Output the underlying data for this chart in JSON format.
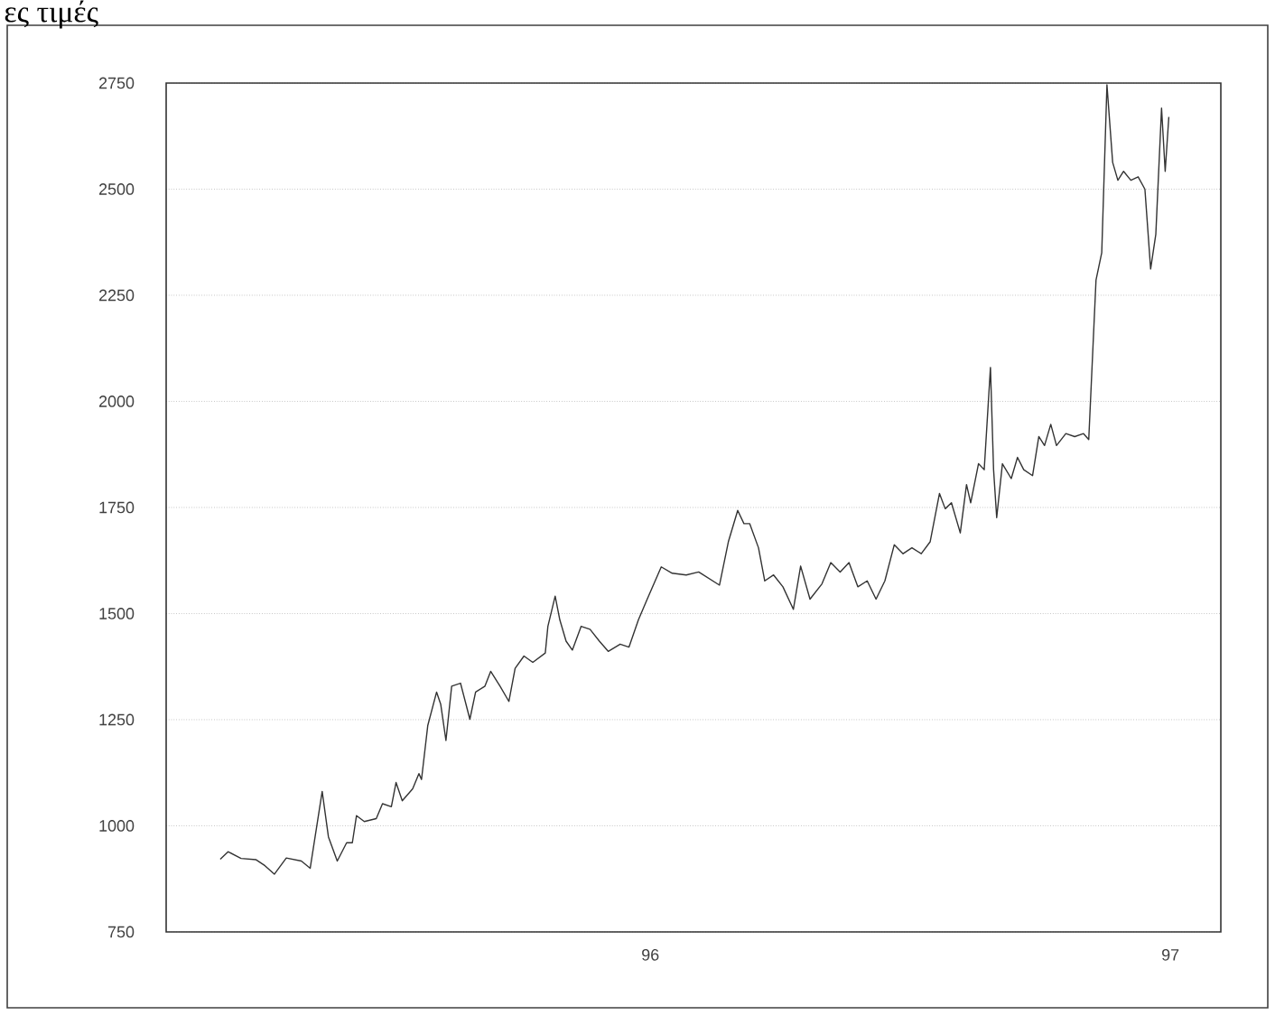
{
  "chart_data": {
    "type": "line",
    "title": "ες τιμές",
    "x": [
      1995.173,
      1995.188,
      1995.213,
      1995.242,
      1995.259,
      1995.277,
      1995.3,
      1995.329,
      1995.346,
      1995.369,
      1995.381,
      1995.398,
      1995.416,
      1995.427,
      1995.435,
      1995.45,
      1995.473,
      1995.485,
      1995.502,
      1995.511,
      1995.523,
      1995.543,
      1995.555,
      1995.56,
      1995.572,
      1995.589,
      1995.597,
      1995.607,
      1995.618,
      1995.635,
      1995.653,
      1995.664,
      1995.682,
      1995.693,
      1995.711,
      1995.728,
      1995.74,
      1995.757,
      1995.774,
      1995.798,
      1995.803,
      1995.817,
      1995.826,
      1995.838,
      1995.85,
      1995.867,
      1995.884,
      1995.902,
      1995.919,
      1995.942,
      1995.959,
      1995.977,
      1995.994,
      1996.021,
      1996.042,
      1996.069,
      1996.093,
      1996.133,
      1996.15,
      1996.168,
      1996.18,
      1996.191,
      1996.208,
      1996.22,
      1996.237,
      1996.255,
      1996.275,
      1996.289,
      1996.307,
      1996.33,
      1996.347,
      1996.365,
      1996.382,
      1996.399,
      1996.417,
      1996.434,
      1996.451,
      1996.469,
      1996.486,
      1996.503,
      1996.521,
      1996.538,
      1996.556,
      1996.567,
      1996.579,
      1996.596,
      1996.608,
      1996.616,
      1996.631,
      1996.642,
      1996.654,
      1996.66,
      1996.666,
      1996.677,
      1996.694,
      1996.706,
      1996.718,
      1996.735,
      1996.747,
      1996.758,
      1996.77,
      1996.781,
      1996.799,
      1996.816,
      1996.833,
      1996.843,
      1996.857,
      1996.868,
      1996.878,
      1996.889,
      1996.899,
      1996.91,
      1996.924,
      1996.938,
      1996.951,
      1996.962,
      1996.972,
      1996.983,
      1996.99,
      1996.997
    ],
    "values": [
      921,
      939,
      923,
      920,
      906,
      886,
      924,
      917,
      900,
      1081,
      974,
      917,
      960,
      960,
      1024,
      1010,
      1017,
      1052,
      1045,
      1102,
      1059,
      1087,
      1123,
      1109,
      1236,
      1315,
      1286,
      1201,
      1329,
      1336,
      1251,
      1315,
      1329,
      1364,
      1329,
      1293,
      1371,
      1400,
      1385,
      1407,
      1470,
      1541,
      1485,
      1435,
      1414,
      1470,
      1463,
      1435,
      1411,
      1428,
      1421,
      1485,
      1534,
      1610,
      1595,
      1591,
      1598,
      1567,
      1669,
      1743,
      1712,
      1712,
      1655,
      1577,
      1591,
      1563,
      1510,
      1612,
      1534,
      1570,
      1620,
      1598,
      1620,
      1563,
      1577,
      1534,
      1577,
      1662,
      1641,
      1655,
      1641,
      1669,
      1783,
      1747,
      1761,
      1690,
      1804,
      1761,
      1853,
      1839,
      2080,
      1839,
      1726,
      1853,
      1818,
      1868,
      1839,
      1825,
      1917,
      1896,
      1946,
      1896,
      1924,
      1917,
      1924,
      1910,
      2286,
      2350,
      2746,
      2563,
      2521,
      2542,
      2521,
      2529,
      2500,
      2312,
      2394,
      2691,
      2542,
      2670
    ],
    "color": "#333333",
    "xlim": [
      1995.069,
      1997.097
    ],
    "xticks": [
      {
        "value": 1996,
        "label": "96"
      },
      {
        "value": 1997,
        "label": "97"
      }
    ],
    "ylim": [
      750,
      2750
    ],
    "yticks": [
      750,
      1000,
      1250,
      1500,
      1750,
      2000,
      2250,
      2500,
      2750
    ],
    "grid": "y"
  }
}
